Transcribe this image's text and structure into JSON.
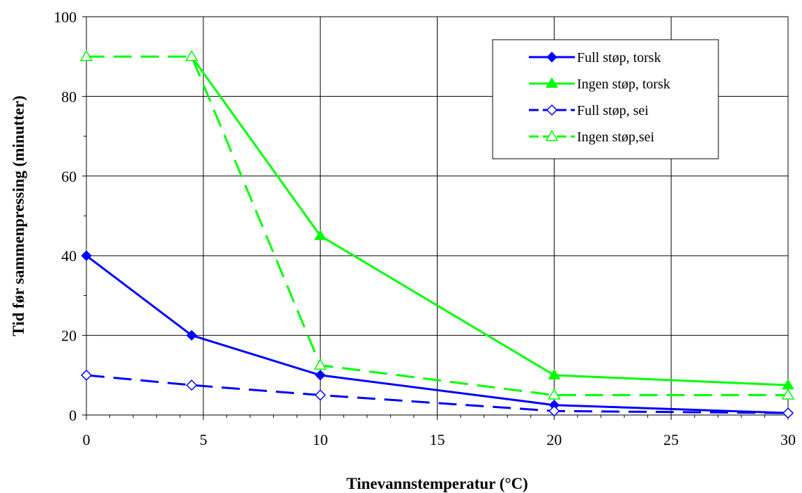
{
  "chart_data": {
    "type": "line",
    "title": "",
    "xlabel": "Tinevannstemperatur (°C)",
    "ylabel": "Tid før sammenpressing (minutter)",
    "xlim": [
      0,
      30
    ],
    "ylim": [
      0,
      100
    ],
    "xticks": [
      0,
      5,
      10,
      15,
      20,
      25,
      30
    ],
    "yticks": [
      0,
      20,
      40,
      60,
      80,
      100
    ],
    "xtick_labels": [
      "0",
      "5",
      "10",
      "15",
      "20",
      "25",
      "30"
    ],
    "ytick_labels": [
      "0",
      "20",
      "40",
      "60",
      "80",
      "100"
    ],
    "grid": true,
    "legend_position": "top-right",
    "series": [
      {
        "name": "Full støp, torsk",
        "color": "#0000ff",
        "line_style": "solid",
        "marker": "diamond-filled",
        "points": [
          [
            0,
            40
          ],
          [
            4.5,
            20
          ],
          [
            10,
            10
          ],
          [
            20,
            2.5
          ],
          [
            30,
            0.5
          ]
        ]
      },
      {
        "name": "Ingen støp, torsk",
        "color": "#00ff00",
        "line_style": "solid",
        "marker": "triangle-filled",
        "points": [
          [
            4.5,
            90
          ],
          [
            10,
            45
          ],
          [
            20,
            10
          ],
          [
            30,
            7.5
          ]
        ]
      },
      {
        "name": "Full støp, sei",
        "color": "#0000ff",
        "line_style": "dashed",
        "marker": "diamond-open",
        "points": [
          [
            0,
            10
          ],
          [
            4.5,
            7.5
          ],
          [
            10,
            5
          ],
          [
            20,
            1
          ],
          [
            30,
            0.5
          ]
        ]
      },
      {
        "name": "Ingen støp,sei",
        "color": "#00ff00",
        "line_style": "dashed",
        "marker": "triangle-open",
        "points": [
          [
            0,
            90
          ],
          [
            4.5,
            90
          ],
          [
            10,
            12.5
          ],
          [
            20,
            5
          ],
          [
            30,
            5
          ]
        ]
      }
    ]
  }
}
